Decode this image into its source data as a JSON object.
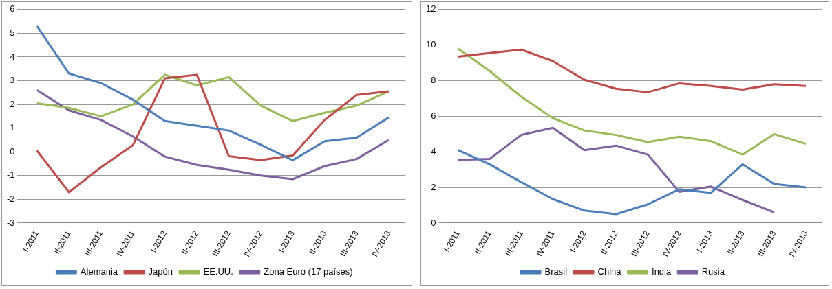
{
  "chart_data": [
    {
      "type": "line",
      "categories": [
        "I-2011",
        "II-2011",
        "III-2011",
        "IV-2011",
        "I-2012",
        "II-2012",
        "III-2012",
        "IV-2012",
        "I-2013",
        "II-2013",
        "III-2013",
        "IV-2013"
      ],
      "series": [
        {
          "name": "Alemania",
          "color": "#4a7ebb",
          "values": [
            5.3,
            3.3,
            2.9,
            2.2,
            1.3,
            1.1,
            0.9,
            0.3,
            -0.35,
            0.45,
            0.6,
            1.45
          ]
        },
        {
          "name": "Japón",
          "color": "#be4b48",
          "values": [
            0.05,
            -1.7,
            -0.65,
            0.28,
            3.1,
            3.25,
            -0.18,
            -0.35,
            -0.15,
            1.35,
            2.4,
            2.55
          ]
        },
        {
          "name": "EE.UU.",
          "color": "#98b954",
          "values": [
            2.05,
            1.85,
            1.5,
            2.0,
            3.25,
            2.8,
            3.15,
            1.95,
            1.3,
            1.65,
            1.95,
            2.55
          ]
        },
        {
          "name": "Zona Euro (17 países)",
          "color": "#7d5fa0",
          "values": [
            2.6,
            1.75,
            1.35,
            0.65,
            -0.2,
            -0.55,
            -0.75,
            -1.0,
            -1.15,
            -0.6,
            -0.3,
            0.5
          ]
        }
      ],
      "ylim": [
        -3,
        6
      ],
      "yticks": [
        -3,
        -2,
        -1,
        0,
        1,
        2,
        3,
        4,
        5,
        6
      ],
      "grid": "y",
      "legend": "bottom",
      "marker": "none"
    },
    {
      "type": "line",
      "categories": [
        "I-2011",
        "II-2011",
        "III-2011",
        "IV-2011",
        "I-2012",
        "II-2012",
        "III-2012",
        "IV-2012",
        "I-2013",
        "II-2013",
        "III-2013",
        "IV-2013"
      ],
      "series": [
        {
          "name": "Brasil",
          "color": "#4a7ebb",
          "values": [
            4.1,
            3.3,
            2.3,
            1.35,
            0.7,
            0.5,
            1.05,
            1.9,
            1.7,
            3.3,
            2.2,
            2.0
          ]
        },
        {
          "name": "China",
          "color": "#be4b48",
          "values": [
            9.35,
            9.55,
            9.75,
            9.1,
            8.05,
            7.55,
            7.35,
            7.85,
            7.7,
            7.5,
            7.8,
            7.7
          ]
        },
        {
          "name": "India",
          "color": "#98b954",
          "values": [
            9.8,
            8.55,
            7.1,
            5.9,
            5.2,
            4.95,
            4.55,
            4.85,
            4.6,
            3.85,
            5.0,
            4.45
          ]
        },
        {
          "name": "Rusia",
          "color": "#7d5fa0",
          "values": [
            3.55,
            3.6,
            4.95,
            5.35,
            4.1,
            4.35,
            3.85,
            1.75,
            2.05,
            1.3,
            0.6,
            null
          ]
        }
      ],
      "ylim": [
        0,
        12
      ],
      "yticks": [
        0,
        2,
        4,
        6,
        8,
        10,
        12
      ],
      "grid": "y",
      "legend": "bottom",
      "marker": "none"
    }
  ]
}
